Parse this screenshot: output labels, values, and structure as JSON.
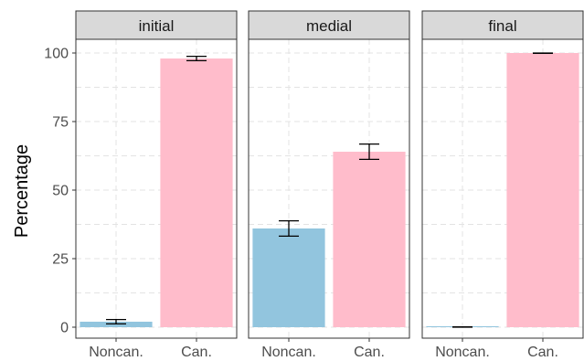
{
  "chart_data": {
    "type": "bar",
    "ylabel": "Percentage",
    "xlabel": "",
    "ylim": [
      -4,
      105
    ],
    "yticks": [
      0,
      25,
      50,
      75,
      100
    ],
    "grid": true,
    "categories": [
      "Noncan.",
      "Can."
    ],
    "colors": {
      "Noncan.": "#92c5de",
      "Can.": "#ffbccb"
    },
    "panels": [
      {
        "title": "initial",
        "values": [
          2,
          98
        ],
        "errors": [
          [
            1.2,
            2.8
          ],
          [
            97.2,
            98.8
          ]
        ]
      },
      {
        "title": "medial",
        "values": [
          36,
          64
        ],
        "errors": [
          [
            33.2,
            38.8
          ],
          [
            61.2,
            66.8
          ]
        ]
      },
      {
        "title": "final",
        "values": [
          0,
          100
        ],
        "errors": [
          [
            0,
            0.1
          ],
          [
            99.9,
            100
          ]
        ]
      }
    ]
  }
}
